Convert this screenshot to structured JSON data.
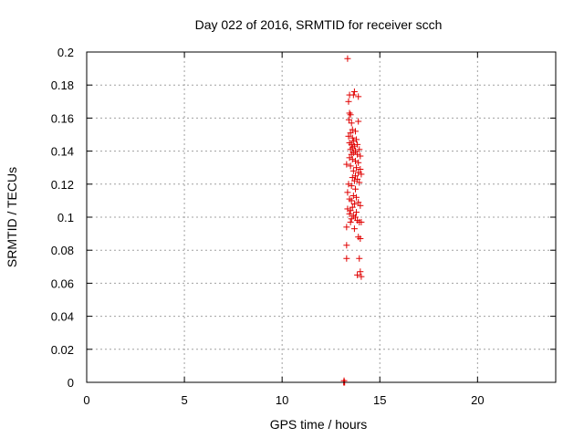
{
  "chart_data": {
    "type": "scatter",
    "title": "Day 022 of 2016, SRMTID for receiver scch",
    "xlabel": "GPS time / hours",
    "ylabel": "SRMTID / TECUs",
    "xlim": [
      0,
      24
    ],
    "ylim": [
      0,
      0.2
    ],
    "xticks": [
      0,
      5,
      10,
      15,
      20
    ],
    "yticks": [
      0,
      0.02,
      0.04,
      0.06,
      0.08,
      0.1,
      0.12,
      0.14,
      0.16,
      0.18,
      0.2
    ],
    "xtick_labels": [
      "0",
      "5",
      "10",
      "15",
      "20"
    ],
    "ytick_labels": [
      "0",
      "0.02",
      "0.04",
      "0.06",
      "0.08",
      "0.1",
      "0.12",
      "0.14",
      "0.16",
      "0.18",
      "0.2"
    ],
    "grid": true,
    "marker": "+",
    "color": "#e00000",
    "series": [
      {
        "points": [
          [
            13.15,
            0.0
          ],
          [
            13.18,
            0.0
          ],
          [
            13.2,
            0.0
          ],
          [
            13.17,
            0.001
          ],
          [
            13.35,
            0.196
          ],
          [
            13.7,
            0.176
          ],
          [
            13.65,
            0.174
          ],
          [
            13.9,
            0.173
          ],
          [
            13.45,
            0.174
          ],
          [
            13.4,
            0.17
          ],
          [
            13.45,
            0.163
          ],
          [
            13.5,
            0.162
          ],
          [
            13.42,
            0.159
          ],
          [
            13.9,
            0.158
          ],
          [
            13.55,
            0.157
          ],
          [
            13.6,
            0.153
          ],
          [
            13.75,
            0.152
          ],
          [
            13.5,
            0.151
          ],
          [
            13.4,
            0.149
          ],
          [
            13.6,
            0.148
          ],
          [
            13.8,
            0.147
          ],
          [
            13.65,
            0.146
          ],
          [
            13.45,
            0.145
          ],
          [
            13.55,
            0.144
          ],
          [
            13.85,
            0.144
          ],
          [
            13.7,
            0.143
          ],
          [
            13.6,
            0.142
          ],
          [
            13.95,
            0.141
          ],
          [
            13.5,
            0.141
          ],
          [
            13.75,
            0.14
          ],
          [
            13.65,
            0.139
          ],
          [
            13.85,
            0.138
          ],
          [
            13.55,
            0.138
          ],
          [
            14.0,
            0.137
          ],
          [
            13.45,
            0.136
          ],
          [
            13.6,
            0.135
          ],
          [
            13.75,
            0.134
          ],
          [
            13.9,
            0.133
          ],
          [
            13.3,
            0.132
          ],
          [
            13.5,
            0.131
          ],
          [
            13.8,
            0.13
          ],
          [
            14.0,
            0.129
          ],
          [
            13.65,
            0.128
          ],
          [
            13.9,
            0.127
          ],
          [
            14.05,
            0.126
          ],
          [
            13.75,
            0.125
          ],
          [
            13.6,
            0.124
          ],
          [
            13.85,
            0.123
          ],
          [
            13.7,
            0.122
          ],
          [
            13.95,
            0.121
          ],
          [
            13.4,
            0.12
          ],
          [
            13.55,
            0.119
          ],
          [
            13.75,
            0.117
          ],
          [
            13.35,
            0.115
          ],
          [
            13.65,
            0.113
          ],
          [
            13.8,
            0.112
          ],
          [
            13.45,
            0.111
          ],
          [
            13.55,
            0.11
          ],
          [
            13.9,
            0.109
          ],
          [
            13.7,
            0.108
          ],
          [
            14.0,
            0.107
          ],
          [
            13.6,
            0.106
          ],
          [
            13.35,
            0.105
          ],
          [
            13.5,
            0.104
          ],
          [
            13.8,
            0.103
          ],
          [
            13.45,
            0.102
          ],
          [
            13.65,
            0.101
          ],
          [
            13.75,
            0.1
          ],
          [
            13.55,
            0.099
          ],
          [
            13.85,
            0.098
          ],
          [
            14.05,
            0.097
          ],
          [
            13.95,
            0.097
          ],
          [
            13.5,
            0.097
          ],
          [
            13.3,
            0.094
          ],
          [
            13.7,
            0.093
          ],
          [
            13.9,
            0.088
          ],
          [
            14.0,
            0.087
          ],
          [
            13.3,
            0.083
          ],
          [
            13.95,
            0.075
          ],
          [
            13.3,
            0.075
          ],
          [
            14.0,
            0.067
          ],
          [
            13.85,
            0.065
          ],
          [
            14.05,
            0.064
          ]
        ]
      }
    ]
  }
}
